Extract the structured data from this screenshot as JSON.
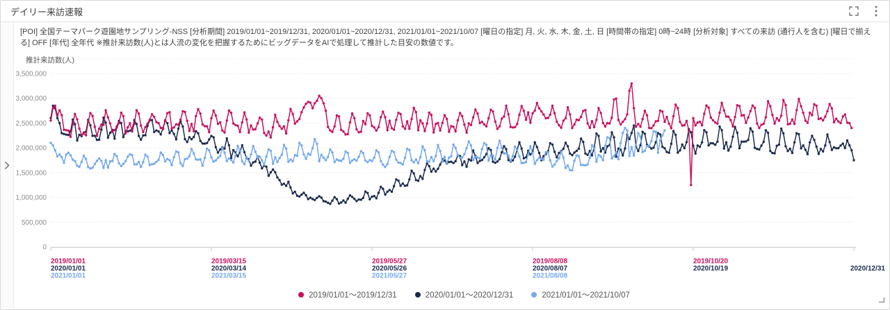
{
  "panel": {
    "title": "デイリー来訪速報"
  },
  "toolbar": {
    "fullscreen_icon": "fullscreen-expand",
    "menu_icon": "kebab-menu"
  },
  "sidebar": {
    "collapse_icon": "chevron-right"
  },
  "description": "[POI] 全国テーマパーク遊園地サンプリング-NSS  [分析期間] 2019/01/01~2019/12/31, 2020/01/01~2020/12/31, 2021/01/01~2021/10/07  [曜日の指定] 月, 火, 水, 木, 金, 土, 日  [時間帯の指定] 0時~24時  [分析対象] すべての来訪 (通行人を含む)  [曜日で揃える] OFF  [年代] 全年代  ※推計来訪数(人)とは人流の変化を把握するためにビッグデータをAIで処理して推計した目安の数値です。",
  "chart_data": {
    "type": "line",
    "title": "デイリー来訪速報",
    "ylabel": "推計来訪数(人)",
    "ylim": [
      0,
      3800000
    ],
    "grid": "horizontal-dotted",
    "legend_position": "bottom",
    "y_ticks": [
      {
        "value": 0,
        "label": "0"
      },
      {
        "value": 500000,
        "label": "500,000"
      },
      {
        "value": 1000000,
        "label": "1,000,000"
      },
      {
        "value": 1500000,
        "label": "1,500,000"
      },
      {
        "value": 2000000,
        "label": "2,000,000"
      },
      {
        "value": 2500000,
        "label": "2,500,000"
      },
      {
        "value": 3000000,
        "label": "3,000,000"
      },
      {
        "value": 3500000,
        "label": "3,500,000"
      }
    ],
    "x_ticks": [
      {
        "day": 0,
        "align": "start",
        "labels": [
          {
            "text": "2019/01/01",
            "series": 0
          },
          {
            "text": "2020/01/01",
            "series": 1
          },
          {
            "text": "2021/01/01",
            "series": 2
          }
        ]
      },
      {
        "day": 73,
        "align": "start",
        "labels": [
          {
            "text": "2019/03/15",
            "series": 0
          },
          {
            "text": "2020/03/14",
            "series": 1
          },
          {
            "text": "2021/03/15",
            "series": 2
          }
        ]
      },
      {
        "day": 146,
        "align": "start",
        "labels": [
          {
            "text": "2019/05/27",
            "series": 0
          },
          {
            "text": "2020/05/26",
            "series": 1
          },
          {
            "text": "2021/05/27",
            "series": 2
          }
        ]
      },
      {
        "day": 219,
        "align": "start",
        "labels": [
          {
            "text": "2019/08/08",
            "series": 0
          },
          {
            "text": "2020/08/07",
            "series": 1
          },
          {
            "text": "2021/08/08",
            "series": 2
          }
        ]
      },
      {
        "day": 292,
        "align": "start",
        "labels": [
          {
            "text": "2019/10/20",
            "series": 0
          },
          {
            "text": "2020/10/19",
            "series": 1
          }
        ]
      },
      {
        "day": 365,
        "align": "end",
        "labels": [
          {
            "text": "2020/12/31",
            "series": 1
          }
        ]
      }
    ],
    "weekly_pattern": {
      "saturday": "weekend_peak",
      "sunday_factor": 0.97,
      "friday_blend": 0.38,
      "weekday_jitter": 0.05,
      "weekend_jitter": 0.02
    },
    "series": [
      {
        "name": "2019/01/01〜2019/12/31",
        "color": "#C8105E",
        "days": 365,
        "start_dow": 2,
        "weekly_levels_k": [
          [
            2450,
            2750
          ],
          [
            2350,
            2700
          ],
          [
            2300,
            2650
          ],
          [
            2350,
            2700
          ],
          [
            2400,
            2750
          ],
          [
            2380,
            2700
          ],
          [
            2420,
            2750
          ],
          [
            2400,
            2700
          ],
          [
            2450,
            2780
          ],
          [
            2430,
            2750
          ],
          [
            2450,
            2800
          ],
          [
            2400,
            2750
          ],
          [
            2430,
            2780
          ],
          [
            2350,
            2650
          ],
          [
            2300,
            2600
          ],
          [
            2350,
            2650
          ],
          [
            2500,
            2800
          ],
          [
            2850,
            3050
          ],
          [
            2400,
            2650
          ],
          [
            2380,
            2680
          ],
          [
            2420,
            2700
          ],
          [
            2450,
            2750
          ],
          [
            2430,
            2720
          ],
          [
            2470,
            2780
          ],
          [
            2440,
            2750
          ],
          [
            2400,
            2700
          ],
          [
            2380,
            2680
          ],
          [
            2420,
            2720
          ],
          [
            2450,
            2750
          ],
          [
            2480,
            2780
          ],
          [
            2520,
            2820
          ],
          [
            2600,
            2850
          ],
          [
            2650,
            2850
          ],
          [
            2480,
            2800
          ],
          [
            2450,
            2780
          ],
          [
            2480,
            2800
          ],
          [
            2500,
            2850
          ],
          [
            2550,
            3100
          ],
          [
            2480,
            2800
          ],
          [
            2450,
            2780
          ],
          [
            2500,
            2820
          ],
          [
            2500,
            2850
          ],
          [
            2520,
            2870
          ],
          [
            2500,
            2900
          ],
          [
            2520,
            2880
          ],
          [
            2550,
            2920
          ],
          [
            2500,
            2880
          ],
          [
            2550,
            2900
          ],
          [
            2580,
            2950
          ],
          [
            2600,
            2950
          ],
          [
            2550,
            2900
          ],
          [
            2600,
            2900
          ],
          [
            2450,
            2450
          ]
        ],
        "special_days_k": {
          "0": 2550,
          "1": 2800,
          "2": 2850,
          "3": 2650,
          "120": 2900,
          "121": 2950,
          "122": 3050,
          "123": 3000,
          "124": 2900,
          "125": 2750,
          "263": 3150,
          "264": 3300,
          "265": 2800,
          "290": 2350,
          "291": 1250,
          "292": 2600,
          "363": 2500,
          "364": 2400
        }
      },
      {
        "name": "2020/01/01〜2020/12/31",
        "color": "#1C2B4D",
        "days": 366,
        "start_dow": 3,
        "weekly_levels_k": [
          [
            2350,
            2600
          ],
          [
            2250,
            2550
          ],
          [
            2200,
            2500
          ],
          [
            2250,
            2550
          ],
          [
            2300,
            2600
          ],
          [
            2280,
            2580
          ],
          [
            2250,
            2550
          ],
          [
            2300,
            2620
          ],
          [
            2250,
            2560
          ],
          [
            2150,
            2400
          ],
          [
            2050,
            2300
          ],
          [
            1950,
            2200
          ],
          [
            1850,
            2100
          ],
          [
            1700,
            1900
          ],
          [
            1550,
            1700
          ],
          [
            1250,
            1400
          ],
          [
            1050,
            1150
          ],
          [
            950,
            1050
          ],
          [
            900,
            1000
          ],
          [
            920,
            1020
          ],
          [
            950,
            1080
          ],
          [
            1000,
            1150
          ],
          [
            1100,
            1280
          ],
          [
            1250,
            1450
          ],
          [
            1400,
            1600
          ],
          [
            1550,
            1750
          ],
          [
            1650,
            1850
          ],
          [
            1700,
            1900
          ],
          [
            1750,
            1950
          ],
          [
            1780,
            2000
          ],
          [
            1800,
            2050
          ],
          [
            1850,
            2100
          ],
          [
            1820,
            2080
          ],
          [
            1850,
            2100
          ],
          [
            1880,
            2150
          ],
          [
            1900,
            2200
          ],
          [
            1950,
            2400
          ],
          [
            1900,
            2250
          ],
          [
            1950,
            2300
          ],
          [
            1970,
            2320
          ],
          [
            1950,
            2300
          ],
          [
            2000,
            2350
          ],
          [
            1980,
            2330
          ],
          [
            2000,
            2380
          ],
          [
            2020,
            2400
          ],
          [
            2050,
            2420
          ],
          [
            2000,
            2380
          ],
          [
            1980,
            2350
          ],
          [
            2000,
            2330
          ],
          [
            1950,
            2300
          ],
          [
            1950,
            2250
          ],
          [
            2000,
            2200
          ],
          [
            1900,
            1900
          ]
        ],
        "special_days_k": {
          "0": 2600,
          "1": 2850,
          "2": 2800,
          "3": 2600,
          "264": 2300,
          "265": 2450,
          "362": 2150,
          "363": 2050,
          "364": 1950,
          "365": 1750
        }
      },
      {
        "name": "2021/01/01〜2021/10/07",
        "color": "#74A9EC",
        "days": 280,
        "start_dow": 5,
        "weekly_levels_k": [
          [
            1850,
            2100
          ],
          [
            1750,
            1950
          ],
          [
            1680,
            1850
          ],
          [
            1650,
            1800
          ],
          [
            1680,
            1850
          ],
          [
            1700,
            1900
          ],
          [
            1680,
            1880
          ],
          [
            1700,
            1900
          ],
          [
            1720,
            1920
          ],
          [
            1700,
            1950
          ],
          [
            1720,
            1980
          ],
          [
            1750,
            2000
          ],
          [
            1730,
            2000
          ],
          [
            1750,
            2020
          ],
          [
            1720,
            2000
          ],
          [
            1750,
            2050
          ],
          [
            1780,
            2080
          ],
          [
            1900,
            2200
          ],
          [
            1700,
            1950
          ],
          [
            1680,
            1930
          ],
          [
            1700,
            1950
          ],
          [
            1680,
            1920
          ],
          [
            1700,
            1950
          ],
          [
            1720,
            1970
          ],
          [
            1750,
            2000
          ],
          [
            1750,
            2020
          ],
          [
            1780,
            2050
          ],
          [
            1850,
            2100
          ],
          [
            1820,
            2100
          ],
          [
            1850,
            2120
          ],
          [
            1780,
            2050
          ],
          [
            1750,
            2000
          ],
          [
            1700,
            1950
          ],
          [
            1650,
            1900
          ],
          [
            1600,
            1850
          ],
          [
            1750,
            2000
          ],
          [
            1850,
            2250
          ],
          [
            1850,
            2150
          ],
          [
            1950,
            2300
          ],
          [
            2000,
            2350
          ]
        ],
        "special_days_k": {
          "0": 2100,
          "1": 2050,
          "2": 1950,
          "259": 2100,
          "260": 2300,
          "261": 2400,
          "262": 2350,
          "277": 2150,
          "278": 2250,
          "279": 2350
        }
      }
    ]
  }
}
